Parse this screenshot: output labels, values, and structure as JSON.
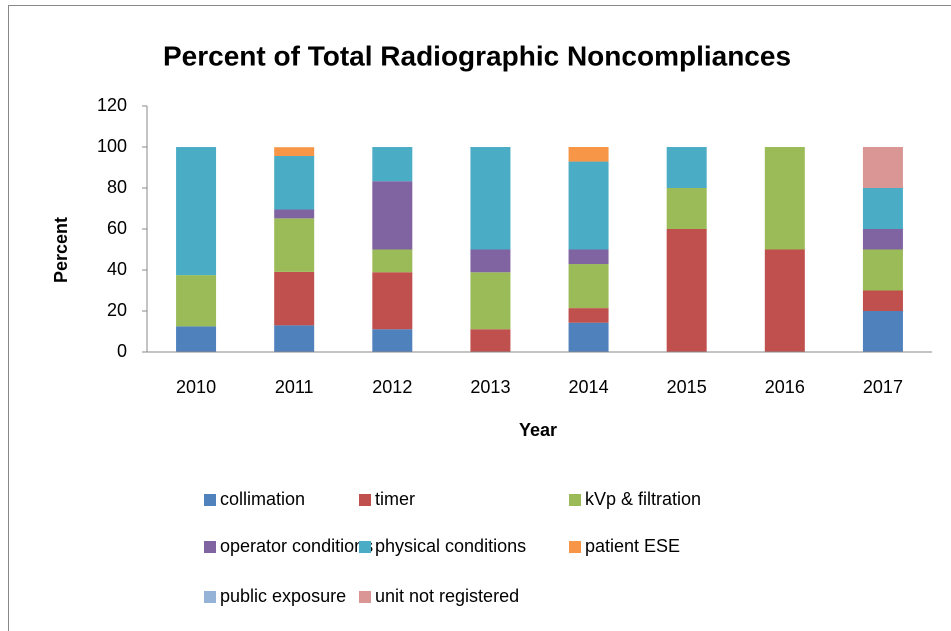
{
  "chart_data": {
    "type": "stacked_bar",
    "title": "Percent of Total Radiographic Noncompliances",
    "x_label": "Year",
    "y_label": "Percent",
    "categories": [
      "2010",
      "2011",
      "2012",
      "2013",
      "2014",
      "2015",
      "2016",
      "2017"
    ],
    "series": [
      {
        "name": "collimation",
        "color": "#4f81bd",
        "values": [
          12.5,
          13.0,
          11.1,
          0,
          14.3,
          0,
          0,
          20
        ]
      },
      {
        "name": "timer",
        "color": "#c0504d",
        "values": [
          0,
          26.1,
          27.8,
          11.1,
          7.1,
          60,
          50,
          10
        ]
      },
      {
        "name": "kVp & filtration",
        "color": "#9bbb59",
        "values": [
          25,
          26.1,
          11.1,
          27.8,
          21.5,
          20,
          50,
          20
        ]
      },
      {
        "name": "operator conditions",
        "color": "#8064a2",
        "values": [
          0,
          4.3,
          33.3,
          11.1,
          7.1,
          0,
          0,
          10
        ]
      },
      {
        "name": "physical conditions",
        "color": "#4bacc6",
        "values": [
          62.5,
          26.1,
          16.7,
          50,
          42.9,
          20,
          0,
          20
        ]
      },
      {
        "name": "patient ESE",
        "color": "#f79646",
        "values": [
          0,
          4.3,
          0,
          0,
          7.1,
          0,
          0,
          0
        ]
      },
      {
        "name": "public exposure",
        "color": "#95b3d7",
        "values": [
          0,
          0,
          0,
          0,
          0,
          0,
          0,
          0
        ]
      },
      {
        "name": "unit not registered",
        "color": "#d99694",
        "values": [
          0,
          0,
          0,
          0,
          0,
          0,
          0,
          20
        ]
      }
    ],
    "ylim": [
      0,
      120
    ],
    "yticks": [
      0,
      20,
      40,
      60,
      80,
      100,
      120
    ],
    "grid": false,
    "legend": "bottom"
  }
}
